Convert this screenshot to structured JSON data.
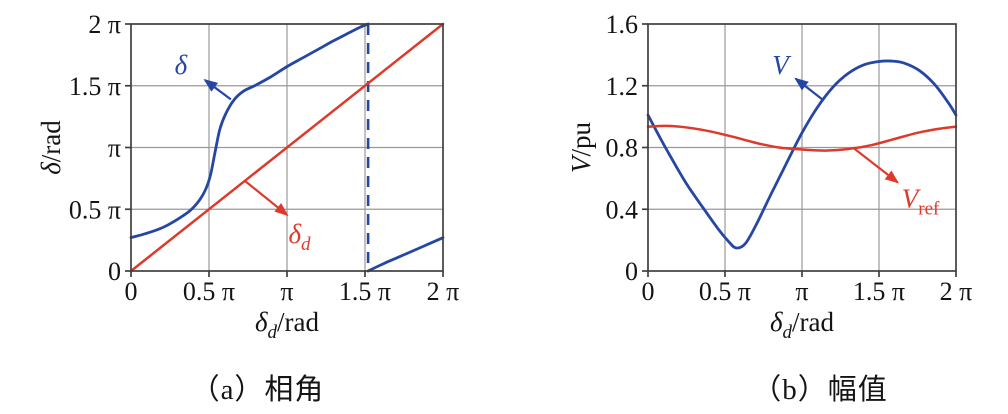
{
  "colors": {
    "blue": "#2646a4",
    "red": "#dd3a2c",
    "grid": "#999999",
    "axis": "#3f3f3f",
    "text": "#141414"
  },
  "captions": {
    "a": "（a）相角",
    "b": "（b）幅值"
  },
  "chart_data": [
    {
      "id": "phase",
      "type": "line",
      "title": "（a）相角",
      "xlabel": {
        "sym": "δ",
        "sub": "d",
        "sub_italic": true,
        "unit": "/rad"
      },
      "ylabel": {
        "sym": "δ",
        "unit": "/rad"
      },
      "xlim": [
        0,
        2
      ],
      "ylim": [
        0,
        2
      ],
      "x_axis_units": "π rad",
      "y_axis_units": "π rad",
      "grid": true,
      "xticks": [
        {
          "v": 0,
          "label": "0"
        },
        {
          "v": 0.5,
          "label": "0.5 π"
        },
        {
          "v": 1,
          "label": "π"
        },
        {
          "v": 1.5,
          "label": "1.5 π"
        },
        {
          "v": 2,
          "label": "2 π"
        }
      ],
      "yticks": [
        {
          "v": 0,
          "label": "0"
        },
        {
          "v": 0.5,
          "label": "0.5 π"
        },
        {
          "v": 1,
          "label": "π"
        },
        {
          "v": 1.5,
          "label": "1.5 π"
        },
        {
          "v": 2,
          "label": "2 π"
        }
      ],
      "series": [
        {
          "name": "delta-curve",
          "legend": "δ",
          "color": "blue",
          "width": 2.8,
          "smooth": true,
          "segments": [
            [
              [
                0,
                0.27
              ],
              [
                0.1,
                0.305
              ],
              [
                0.2,
                0.35
              ],
              [
                0.3,
                0.42
              ],
              [
                0.38,
                0.49
              ],
              [
                0.44,
                0.575
              ],
              [
                0.48,
                0.665
              ],
              [
                0.51,
                0.78
              ],
              [
                0.54,
                0.97
              ],
              [
                0.57,
                1.15
              ],
              [
                0.61,
                1.28
              ],
              [
                0.66,
                1.385
              ],
              [
                0.72,
                1.455
              ],
              [
                0.8,
                1.505
              ],
              [
                0.9,
                1.575
              ],
              [
                1.0,
                1.655
              ],
              [
                1.1,
                1.725
              ],
              [
                1.2,
                1.795
              ],
              [
                1.3,
                1.865
              ],
              [
                1.4,
                1.93
              ],
              [
                1.47,
                1.975
              ],
              [
                1.52,
                2.0
              ]
            ],
            [
              [
                1.52,
                0
              ],
              [
                1.62,
                0.06
              ],
              [
                1.72,
                0.115
              ],
              [
                1.82,
                0.17
              ],
              [
                1.91,
                0.22
              ],
              [
                2.0,
                0.27
              ]
            ]
          ]
        },
        {
          "name": "delta-d-reference-line",
          "legend": "δd",
          "color": "red",
          "width": 2.5,
          "smooth": false,
          "segments": [
            [
              [
                0,
                0
              ],
              [
                2,
                2
              ]
            ]
          ]
        }
      ],
      "vlines": [
        {
          "x": 1.52,
          "color": "blue",
          "dash": "11 8",
          "width": 2.6
        }
      ],
      "annotations": [
        {
          "label": {
            "sym": "δ"
          },
          "color": "blue",
          "label_at": [
            0.32,
            1.67
          ],
          "arrow_from": [
            0.64,
            1.39
          ],
          "arrow_to": [
            0.475,
            1.545
          ]
        },
        {
          "label": {
            "sym": "δ",
            "sub": "d",
            "sub_italic": true
          },
          "color": "red",
          "label_at": [
            1.08,
            0.3
          ],
          "arrow_from": [
            0.73,
            0.73
          ],
          "arrow_to": [
            1.0,
            0.455
          ]
        }
      ]
    },
    {
      "id": "magnitude",
      "type": "line",
      "title": "（b）幅值",
      "xlabel": {
        "sym": "δ",
        "sub": "d",
        "sub_italic": true,
        "unit": "/rad"
      },
      "ylabel": {
        "sym": "V",
        "unit": "/pu"
      },
      "xlim": [
        0,
        2
      ],
      "ylim": [
        0,
        1.6
      ],
      "x_axis_units": "π rad",
      "y_axis_units": "pu",
      "grid": true,
      "xticks": [
        {
          "v": 0,
          "label": "0"
        },
        {
          "v": 0.5,
          "label": "0.5 π"
        },
        {
          "v": 1,
          "label": "π"
        },
        {
          "v": 1.5,
          "label": "1.5 π"
        },
        {
          "v": 2,
          "label": "2 π"
        }
      ],
      "yticks": [
        {
          "v": 0,
          "label": "0"
        },
        {
          "v": 0.4,
          "label": "0.4"
        },
        {
          "v": 0.8,
          "label": "0.8"
        },
        {
          "v": 1.2,
          "label": "1.2"
        },
        {
          "v": 1.6,
          "label": "1.6"
        }
      ],
      "series": [
        {
          "name": "voltage-curve",
          "legend": "V",
          "color": "blue",
          "width": 2.8,
          "smooth": true,
          "segments": [
            [
              [
                0,
                1.01
              ],
              [
                0.08,
                0.86
              ],
              [
                0.15,
                0.735
              ],
              [
                0.25,
                0.565
              ],
              [
                0.35,
                0.42
              ],
              [
                0.45,
                0.28
              ],
              [
                0.52,
                0.195
              ],
              [
                0.57,
                0.15
              ],
              [
                0.63,
                0.175
              ],
              [
                0.7,
                0.295
              ],
              [
                0.8,
                0.5
              ],
              [
                0.9,
                0.7
              ],
              [
                1.0,
                0.895
              ],
              [
                1.1,
                1.06
              ],
              [
                1.2,
                1.19
              ],
              [
                1.3,
                1.28
              ],
              [
                1.4,
                1.335
              ],
              [
                1.5,
                1.357
              ],
              [
                1.58,
                1.36
              ],
              [
                1.66,
                1.348
              ],
              [
                1.76,
                1.3
              ],
              [
                1.86,
                1.21
              ],
              [
                1.95,
                1.09
              ],
              [
                2.0,
                1.01
              ]
            ]
          ]
        },
        {
          "name": "voltage-reference-curve",
          "legend": "Vref",
          "color": "red",
          "width": 2.5,
          "smooth": true,
          "segments": [
            [
              [
                0,
                0.935
              ],
              [
                0.12,
                0.94
              ],
              [
                0.25,
                0.93
              ],
              [
                0.4,
                0.905
              ],
              [
                0.55,
                0.87
              ],
              [
                0.7,
                0.83
              ],
              [
                0.85,
                0.8
              ],
              [
                1.0,
                0.787
              ],
              [
                1.15,
                0.78
              ],
              [
                1.3,
                0.79
              ],
              [
                1.45,
                0.815
              ],
              [
                1.6,
                0.855
              ],
              [
                1.75,
                0.895
              ],
              [
                1.88,
                0.92
              ],
              [
                2.0,
                0.935
              ]
            ]
          ]
        }
      ],
      "vlines": [],
      "annotations": [
        {
          "label": {
            "sym": "V"
          },
          "color": "blue",
          "label_at": [
            0.86,
            1.335
          ],
          "arrow_from": [
            1.14,
            1.105
          ],
          "arrow_to": [
            0.96,
            1.245
          ]
        },
        {
          "label": {
            "sym": "V",
            "sub": "ref",
            "sub_italic": false
          },
          "color": "red",
          "label_at": [
            1.77,
            0.47
          ],
          "arrow_from": [
            1.33,
            0.8
          ],
          "arrow_to": [
            1.62,
            0.575
          ]
        }
      ]
    }
  ]
}
